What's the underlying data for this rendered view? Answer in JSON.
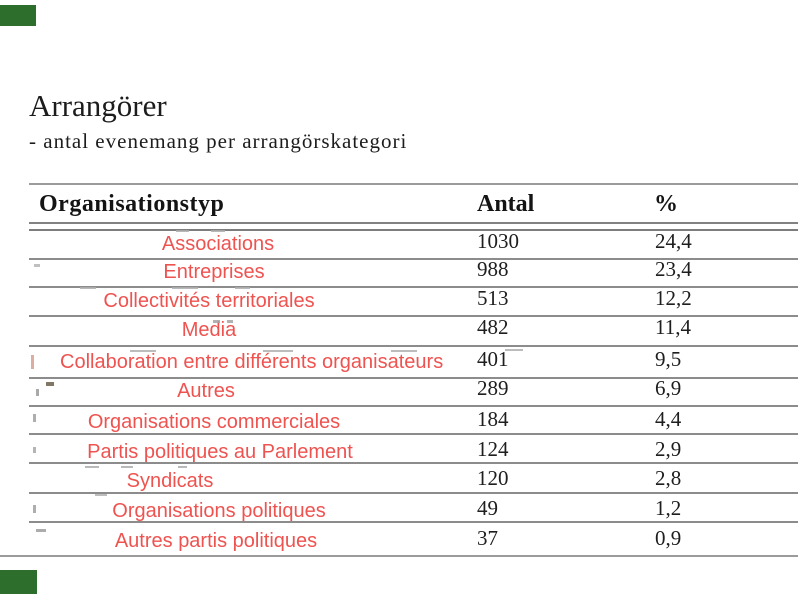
{
  "page": {
    "title": "Arrangörer",
    "subtitle": "- antal evenemang per arrangörskategori"
  },
  "table": {
    "headers": {
      "org": "Organisationstyp",
      "antal": "Antal",
      "pct": "%"
    },
    "rows": [
      {
        "label": "Associations",
        "antal": "1030",
        "pct": "24,4"
      },
      {
        "label": "Entreprises",
        "antal": "988",
        "pct": "23,4"
      },
      {
        "label": "Collectivités territoriales",
        "antal": "513",
        "pct": "12,2"
      },
      {
        "label": "Media",
        "antal": "482",
        "pct": "11,4"
      },
      {
        "label": "Collaboration entre différents organisateurs",
        "antal": "401",
        "pct": "9,5"
      },
      {
        "label": "Autres",
        "antal": "289",
        "pct": "6,9"
      },
      {
        "label": "Organisations commerciales",
        "antal": "184",
        "pct": "4,4"
      },
      {
        "label": "Partis politiques au Parlement",
        "antal": "124",
        "pct": "2,9"
      },
      {
        "label": "Syndicats",
        "antal": "120",
        "pct": "2,8"
      },
      {
        "label": "Organisations politiques",
        "antal": "49",
        "pct": "1,2"
      },
      {
        "label": "Autres partis politiques",
        "antal": "37",
        "pct": "0,9"
      }
    ]
  },
  "colors": {
    "label_red": "#ee5350",
    "text_black": "#1c1c1c",
    "rule_gray": "#8c8c8c",
    "corner_green": "#2d6e2d"
  }
}
